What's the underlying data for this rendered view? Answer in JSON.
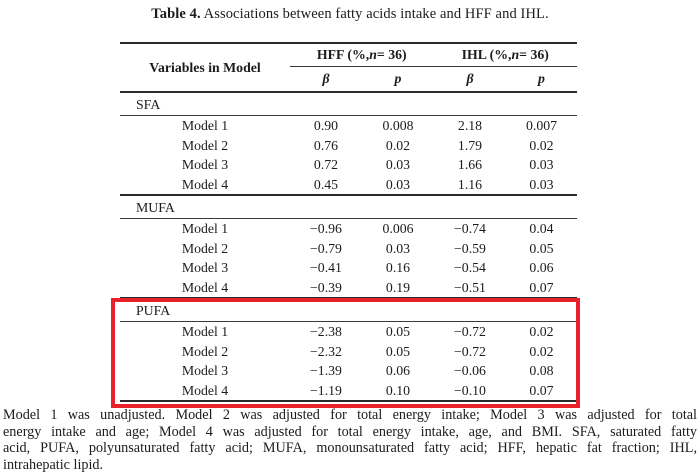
{
  "colors": {
    "highlight_box": "#e8212b",
    "text": "#1c1c1c",
    "rule": "#2b2b2b"
  },
  "caption": {
    "label": "Table 4.",
    "text": "Associations between fatty acids intake and HFF and IHL."
  },
  "table": {
    "col1_header": "Variables in Model",
    "groups": [
      {
        "pre": "HFF (%, ",
        "n": "n",
        "post": " = 36)"
      },
      {
        "pre": "IHL (%, ",
        "n": "n",
        "post": " = 36)"
      }
    ],
    "subheaders": [
      "β",
      "p",
      "β",
      "p"
    ],
    "sections": [
      {
        "name": "SFA",
        "highlighted": false,
        "rows": [
          {
            "label": "Model 1",
            "values": [
              "0.90",
              "0.008",
              "2.18",
              "0.007"
            ]
          },
          {
            "label": "Model 2",
            "values": [
              "0.76",
              "0.02",
              "1.79",
              "0.02"
            ]
          },
          {
            "label": "Model 3",
            "values": [
              "0.72",
              "0.03",
              "1.66",
              "0.03"
            ]
          },
          {
            "label": "Model 4",
            "values": [
              "0.45",
              "0.03",
              "1.16",
              "0.03"
            ]
          }
        ]
      },
      {
        "name": "MUFA",
        "highlighted": false,
        "rows": [
          {
            "label": "Model 1",
            "values": [
              "−0.96",
              "0.006",
              "−0.74",
              "0.04"
            ]
          },
          {
            "label": "Model 2",
            "values": [
              "−0.79",
              "0.03",
              "−0.59",
              "0.05"
            ]
          },
          {
            "label": "Model 3",
            "values": [
              "−0.41",
              "0.16",
              "−0.54",
              "0.06"
            ]
          },
          {
            "label": "Model 4",
            "values": [
              "−0.39",
              "0.19",
              "−0.51",
              "0.07"
            ]
          }
        ]
      },
      {
        "name": "PUFA",
        "highlighted": true,
        "rows": [
          {
            "label": "Model 1",
            "values": [
              "−2.38",
              "0.05",
              "−0.72",
              "0.02"
            ]
          },
          {
            "label": "Model 2",
            "values": [
              "−2.32",
              "0.05",
              "−0.72",
              "0.02"
            ]
          },
          {
            "label": "Model 3",
            "values": [
              "−1.39",
              "0.06",
              "−0.06",
              "0.08"
            ]
          },
          {
            "label": "Model 4",
            "values": [
              "−1.19",
              "0.10",
              "−0.10",
              "0.07"
            ]
          }
        ]
      }
    ]
  },
  "footer": {
    "lines": [
      "Model 1 was unadjusted. Model 2 was adjusted for total energy intake; Model 3 was adjusted for total",
      "energy intake and age; Model 4 was adjusted for total energy intake, age, and BMI. SFA, saturated fatty",
      "acid, PUFA, polyunsaturated fatty acid; MUFA, monounsaturated fatty acid; HFF, hepatic fat fraction; IHL,",
      "intrahepatic lipid."
    ]
  }
}
